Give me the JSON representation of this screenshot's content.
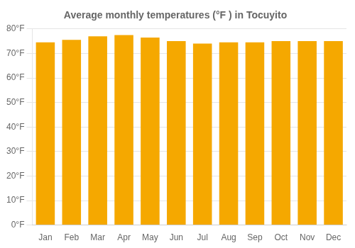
{
  "chart_data": {
    "type": "bar",
    "title": "Average monthly temperatures (°F ) in Tocuyito",
    "categories": [
      "Jan",
      "Feb",
      "Mar",
      "Apr",
      "May",
      "Jun",
      "Jul",
      "Aug",
      "Sep",
      "Oct",
      "Nov",
      "Dec"
    ],
    "values": [
      74.5,
      75.5,
      77.0,
      77.5,
      76.5,
      75.0,
      74.0,
      74.5,
      74.5,
      75.0,
      75.0,
      75.0
    ],
    "color": "#F5A800",
    "ylim": [
      0,
      80
    ],
    "yticks": [
      {
        "value": 0,
        "label": "0°F"
      },
      {
        "value": 10,
        "label": "10°F"
      },
      {
        "value": 20,
        "label": "20°F"
      },
      {
        "value": 30,
        "label": "30°F"
      },
      {
        "value": 40,
        "label": "40°F"
      },
      {
        "value": 50,
        "label": "50°F"
      },
      {
        "value": 60,
        "label": "60°F"
      },
      {
        "value": 70,
        "label": "70°F"
      },
      {
        "value": 80,
        "label": "80°F"
      }
    ],
    "grid": true
  }
}
